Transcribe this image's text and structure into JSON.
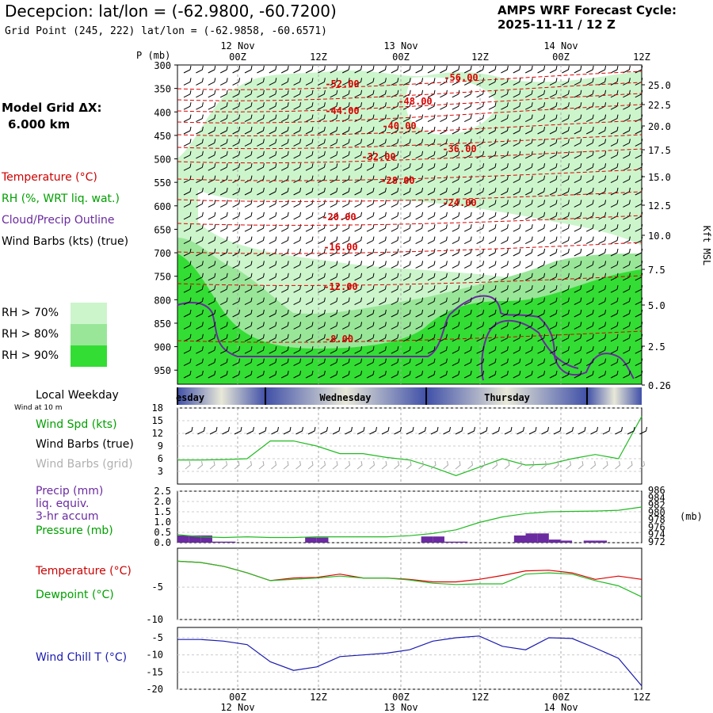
{
  "header": {
    "title": "Decepcion:  lat/lon = (-62.9800, -60.7200)",
    "subtitle": "Grid Point (245, 222) lat/lon = (-62.9858, -60.6571)",
    "cycle_title": "AMPS WRF Forecast Cycle:",
    "cycle_value": "2025-11-11 / 12  Z"
  },
  "sidebar": {
    "grid_label": "Model Grid ΔX:",
    "grid_value": "6.000 km",
    "legend_temp": "Temperature (°C)",
    "legend_rh": "RH (%, WRT liq. wat.)",
    "legend_cloud": "Cloud/Precip Outline",
    "legend_wind": "Wind Barbs (kts) (true)",
    "rh70": "RH > 70%",
    "rh80": "RH > 80%",
    "rh90": "RH > 90%",
    "colors": {
      "rh70": "#ccf5cc",
      "rh80": "#99e699",
      "rh90": "#33dd33",
      "temp": "#dd0000",
      "cloud": "#6a2aa0"
    }
  },
  "weekday": {
    "label": "Local Weekday",
    "wind_at": "Wind at 10 m",
    "days": [
      "esday",
      "Wednesday",
      "Thursday"
    ]
  },
  "panel_labels": {
    "spd": "Wind Spd (kts)",
    "barbs_true": "Wind Barbs (true)",
    "barbs_grid": "Wind Barbs (grid)",
    "precip": "Precip (mm)",
    "liq": "liq. equiv.",
    "accum": "3-hr accum",
    "pressure": "Pressure (mb)",
    "pressure_unit": "(mb)",
    "temp": "Temperature (°C)",
    "dew": "Dewpoint (°C)",
    "windchill": "Wind Chill T (°C)"
  },
  "chart_data": [
    {
      "type": "heatmap",
      "ylabel_left": "P (mb)",
      "ylabel_right": "Kft MSL",
      "pressure_ticks": [
        "300",
        "350",
        "400",
        "450",
        "500",
        "550",
        "600",
        "650",
        "700",
        "750",
        "800",
        "850",
        "900",
        "950"
      ],
      "height_ticks": [
        "25.0",
        "22.5",
        "20.0",
        "17.5",
        "15.0",
        "12.5",
        "10.0",
        "7.5",
        "5.0",
        "2.5",
        "0.26"
      ],
      "time_ticks": [
        "00Z",
        "12Z",
        "00Z",
        "12Z",
        "00Z",
        "12Z"
      ],
      "date_ticks": [
        "12 Nov",
        "13 Nov",
        "14 Nov"
      ],
      "temperature_contours": [
        {
          "label": "-56.00",
          "value": -56
        },
        {
          "label": "-52.00",
          "value": -52
        },
        {
          "label": "-48.00",
          "value": -48
        },
        {
          "label": "-44.00",
          "value": -44
        },
        {
          "label": "-40.00",
          "value": -40
        },
        {
          "label": "-36.00",
          "value": -36
        },
        {
          "label": "-32.00",
          "value": -32
        },
        {
          "label": "-28.00",
          "value": -28
        },
        {
          "label": "-24.00",
          "value": -24
        },
        {
          "label": "-20.00",
          "value": -20
        },
        {
          "label": "-16.00",
          "value": -16
        },
        {
          "label": "-12.00",
          "value": -12
        },
        {
          "label": "-8.00",
          "value": -8
        }
      ]
    },
    {
      "type": "line",
      "series_name": "Wind Spd (kts)",
      "y_ticks": [
        "18",
        "15",
        "12",
        "9",
        "6",
        "3"
      ],
      "ylim": [
        0,
        18
      ],
      "x_hours": [
        0,
        6,
        12,
        18,
        24,
        30,
        36,
        42,
        48,
        54,
        60,
        66,
        72,
        78,
        84,
        90,
        96,
        102,
        108,
        114,
        120
      ],
      "values": [
        5.7,
        5.7,
        5.8,
        6,
        10.2,
        10.2,
        9,
        7.2,
        7.2,
        6.3,
        5.7,
        4,
        2,
        4,
        6,
        4.5,
        4.7,
        6,
        7,
        6,
        16
      ]
    },
    {
      "type": "bar",
      "precip_ticks": [
        "2.5",
        "2.0",
        "1.5",
        "1.0",
        "0.5",
        "0.0"
      ],
      "pressure_ticks": [
        "986",
        "984",
        "982",
        "980",
        "978",
        "976",
        "974",
        "972"
      ],
      "precip_ylim": [
        0,
        2.5
      ],
      "pressure_ylim": [
        972,
        986
      ],
      "precip_hours": [
        0,
        3,
        6,
        9,
        12,
        15,
        18,
        21,
        24,
        27,
        30,
        33,
        36,
        39,
        42,
        45,
        48,
        51,
        54,
        57,
        60,
        63,
        66,
        69,
        72,
        75,
        78,
        81,
        84,
        87,
        90,
        93,
        96,
        99,
        102,
        105,
        108,
        111,
        114,
        117
      ],
      "precip_values": [
        0.35,
        0.35,
        0.35,
        0.05,
        0.05,
        0,
        0,
        0,
        0,
        0,
        0,
        0.25,
        0.25,
        0,
        0,
        0,
        0,
        0,
        0,
        0,
        0,
        0.3,
        0.3,
        0.05,
        0.05,
        0,
        0,
        0,
        0,
        0.35,
        0.45,
        0.45,
        0.15,
        0.1,
        0,
        0.1,
        0.1,
        0,
        0,
        0
      ],
      "pressure_hours": [
        0,
        6,
        12,
        18,
        24,
        30,
        36,
        42,
        48,
        54,
        60,
        66,
        72,
        78,
        84,
        90,
        96,
        102,
        108,
        114,
        120
      ],
      "pressure_values": [
        974.2,
        973.6,
        973.4,
        973.6,
        973.4,
        973.4,
        973.6,
        973.6,
        973.6,
        973.6,
        973.9,
        974.5,
        975.5,
        977.5,
        979,
        979.9,
        980.4,
        980.5,
        980.6,
        980.8,
        981.7
      ]
    },
    {
      "type": "line",
      "y_ticks": [
        "-5",
        "-10"
      ],
      "ylim": [
        -10,
        1
      ],
      "x_hours": [
        0,
        6,
        12,
        18,
        24,
        30,
        36,
        42,
        48,
        54,
        60,
        66,
        72,
        78,
        84,
        90,
        96,
        102,
        108,
        114,
        120
      ],
      "series": [
        {
          "name": "Temperature (°C)",
          "values": [
            -1,
            -1.2,
            -1.8,
            -2.8,
            -4,
            -3.6,
            -3.5,
            -3,
            -3.6,
            -3.6,
            -3.8,
            -4.2,
            -4.2,
            -3.8,
            -3.2,
            -2.5,
            -2.4,
            -2.8,
            -3.8,
            -3.3,
            -3.8
          ]
        },
        {
          "name": "Dewpoint (°C)",
          "values": [
            -1,
            -1.2,
            -1.8,
            -2.8,
            -4,
            -3.8,
            -3.6,
            -3.3,
            -3.6,
            -3.6,
            -3.9,
            -4.4,
            -4.6,
            -4.5,
            -4.5,
            -3,
            -2.8,
            -3,
            -4,
            -4.8,
            -6.5
          ]
        }
      ]
    },
    {
      "type": "line",
      "series_name": "Wind Chill T (°C)",
      "y_ticks": [
        "-5",
        "-10",
        "-15",
        "-20"
      ],
      "ylim": [
        -20,
        -2
      ],
      "x_hours": [
        0,
        6,
        12,
        18,
        24,
        30,
        36,
        42,
        48,
        54,
        60,
        66,
        72,
        78,
        84,
        90,
        96,
        102,
        108,
        114,
        120
      ],
      "values": [
        -5.5,
        -5.5,
        -6,
        -7,
        -12,
        -14.5,
        -13.5,
        -10.5,
        -10,
        -9.5,
        -8.5,
        -6,
        -5,
        -4.5,
        -7.5,
        -8.5,
        -5,
        -5.2,
        -8,
        -11,
        -19
      ]
    }
  ]
}
